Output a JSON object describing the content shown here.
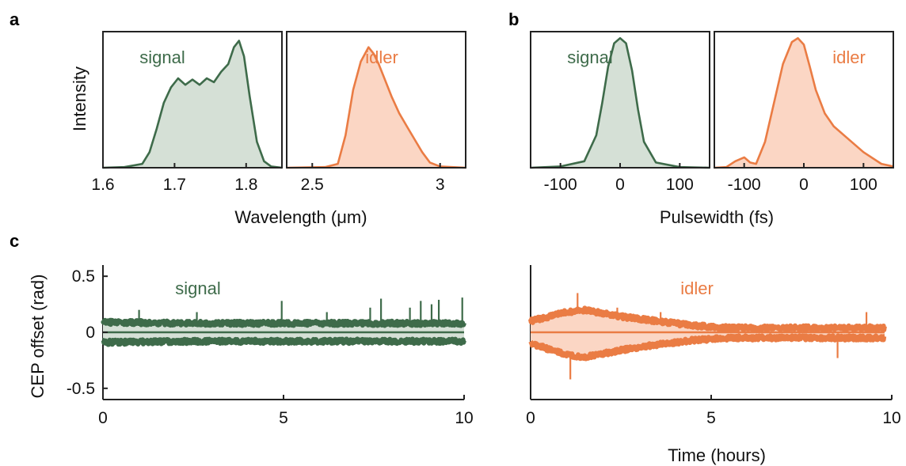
{
  "colors": {
    "signal": "#3e6b4a",
    "idler": "#ea7c44",
    "signal_fill": "#d5e0d6",
    "idler_fill": "#fbd6c4",
    "band": "#e3e3e3"
  },
  "panels": {
    "a": "a",
    "b": "b",
    "c": "c"
  },
  "chart_data": [
    {
      "id": "a-signal",
      "type": "area",
      "panel": "a",
      "series_label": "signal",
      "ylabel": "Intensity",
      "xlim": [
        1.6,
        1.85
      ],
      "ylim": [
        0,
        1.05
      ],
      "xticks": [
        1.6,
        1.7,
        1.8
      ],
      "xtick_labels": [
        "1.6",
        "1.7",
        "1.8"
      ],
      "x": [
        1.6,
        1.63,
        1.655,
        1.665,
        1.675,
        1.685,
        1.695,
        1.705,
        1.715,
        1.725,
        1.735,
        1.745,
        1.755,
        1.765,
        1.775,
        1.783,
        1.79,
        1.797,
        1.805,
        1.815,
        1.825,
        1.835,
        1.85
      ],
      "y": [
        0,
        0.005,
        0.03,
        0.12,
        0.3,
        0.5,
        0.62,
        0.69,
        0.64,
        0.68,
        0.64,
        0.69,
        0.66,
        0.74,
        0.8,
        0.93,
        0.98,
        0.86,
        0.55,
        0.2,
        0.05,
        0.01,
        0
      ]
    },
    {
      "id": "a-idler",
      "type": "area",
      "panel": "a",
      "series_label": "idler",
      "xlim": [
        2.4,
        3.1
      ],
      "ylim": [
        0,
        1.05
      ],
      "xticks": [
        2.5,
        3.0
      ],
      "xtick_labels": [
        "2.5",
        "3"
      ],
      "x": [
        2.4,
        2.55,
        2.6,
        2.63,
        2.66,
        2.69,
        2.72,
        2.74,
        2.76,
        2.78,
        2.81,
        2.84,
        2.87,
        2.9,
        2.93,
        2.96,
        3.0,
        3.1
      ],
      "y": [
        0,
        0.005,
        0.03,
        0.25,
        0.6,
        0.82,
        0.93,
        0.88,
        0.8,
        0.7,
        0.55,
        0.42,
        0.32,
        0.22,
        0.12,
        0.04,
        0.01,
        0
      ]
    },
    {
      "id": "b-signal",
      "type": "area",
      "panel": "b",
      "series_label": "signal",
      "xlim": [
        -150,
        150
      ],
      "ylim": [
        0,
        1.05
      ],
      "xticks": [
        -100,
        0,
        100
      ],
      "xtick_labels": [
        "-100",
        "0",
        "100"
      ],
      "x": [
        -150,
        -100,
        -60,
        -40,
        -30,
        -20,
        -10,
        0,
        10,
        20,
        30,
        40,
        60,
        100,
        150
      ],
      "y": [
        0,
        0.01,
        0.05,
        0.25,
        0.5,
        0.78,
        0.96,
        1.0,
        0.96,
        0.75,
        0.45,
        0.2,
        0.04,
        0.005,
        0
      ]
    },
    {
      "id": "b-idler",
      "type": "area",
      "panel": "b",
      "series_label": "idler",
      "xlim": [
        -150,
        150
      ],
      "ylim": [
        0,
        1.05
      ],
      "xticks": [
        -100,
        0,
        100
      ],
      "xtick_labels": [
        "-100",
        "0",
        "100"
      ],
      "x": [
        -150,
        -130,
        -115,
        -100,
        -90,
        -80,
        -65,
        -50,
        -35,
        -20,
        -10,
        0,
        10,
        20,
        35,
        50,
        70,
        100,
        130,
        150
      ],
      "y": [
        0,
        0.005,
        0.05,
        0.08,
        0.04,
        0.03,
        0.2,
        0.5,
        0.8,
        0.97,
        1.0,
        0.95,
        0.78,
        0.6,
        0.42,
        0.32,
        0.24,
        0.12,
        0.03,
        0.01
      ]
    },
    {
      "id": "c-signal",
      "type": "line",
      "panel": "c",
      "series_label": "signal",
      "ylabel": "CEP offset (rad)",
      "xlim": [
        0,
        10
      ],
      "ylim": [
        -0.6,
        0.6
      ],
      "xticks": [
        0,
        5,
        10
      ],
      "xtick_labels": [
        "0",
        "5",
        "10"
      ],
      "yticks": [
        0.5,
        0,
        -0.5
      ],
      "ytick_labels": [
        "0.5",
        "0",
        "-0.5"
      ],
      "envelope": {
        "x": [
          0,
          2.5,
          5,
          7.5,
          10
        ],
        "upper": [
          0.11,
          0.1,
          0.1,
          0.1,
          0.1
        ],
        "lower": [
          -0.11,
          -0.1,
          -0.1,
          -0.1,
          -0.1
        ],
        "band": 0.04
      },
      "spikes": {
        "x": [
          1.0,
          2.6,
          4.95,
          6.2,
          7.4,
          7.7,
          8.5,
          8.8,
          9.1,
          9.3,
          9.95
        ],
        "y": [
          0.2,
          0.18,
          0.28,
          0.18,
          0.22,
          0.3,
          0.22,
          0.28,
          0.25,
          0.29,
          0.31
        ]
      }
    },
    {
      "id": "c-idler",
      "type": "line",
      "panel": "c",
      "series_label": "idler",
      "xlim": [
        0,
        10
      ],
      "ylim": [
        -0.6,
        0.6
      ],
      "xticks": [
        0,
        5,
        10
      ],
      "xtick_labels": [
        "0",
        "5",
        "10"
      ],
      "xlabel": "Time (hours)",
      "envelope": {
        "x": [
          0,
          1,
          1.5,
          2.5,
          3.5,
          4.5,
          5.5,
          7,
          8.5,
          9.8
        ],
        "upper": [
          0.12,
          0.2,
          0.22,
          0.16,
          0.12,
          0.08,
          0.06,
          0.06,
          0.06,
          0.06
        ],
        "lower": [
          -0.12,
          -0.22,
          -0.24,
          -0.18,
          -0.13,
          -0.09,
          -0.07,
          -0.07,
          -0.07,
          -0.07
        ],
        "band": 0.04
      },
      "spikes": {
        "x": [
          1.1,
          1.3,
          2.4,
          3.6,
          8.5,
          9.3
        ],
        "y": [
          -0.42,
          0.35,
          0.22,
          0.18,
          -0.23,
          0.18
        ]
      }
    }
  ],
  "axis_titles": {
    "a_x": "Wavelength (μm)",
    "b_x": "Pulsewidth (fs)"
  }
}
